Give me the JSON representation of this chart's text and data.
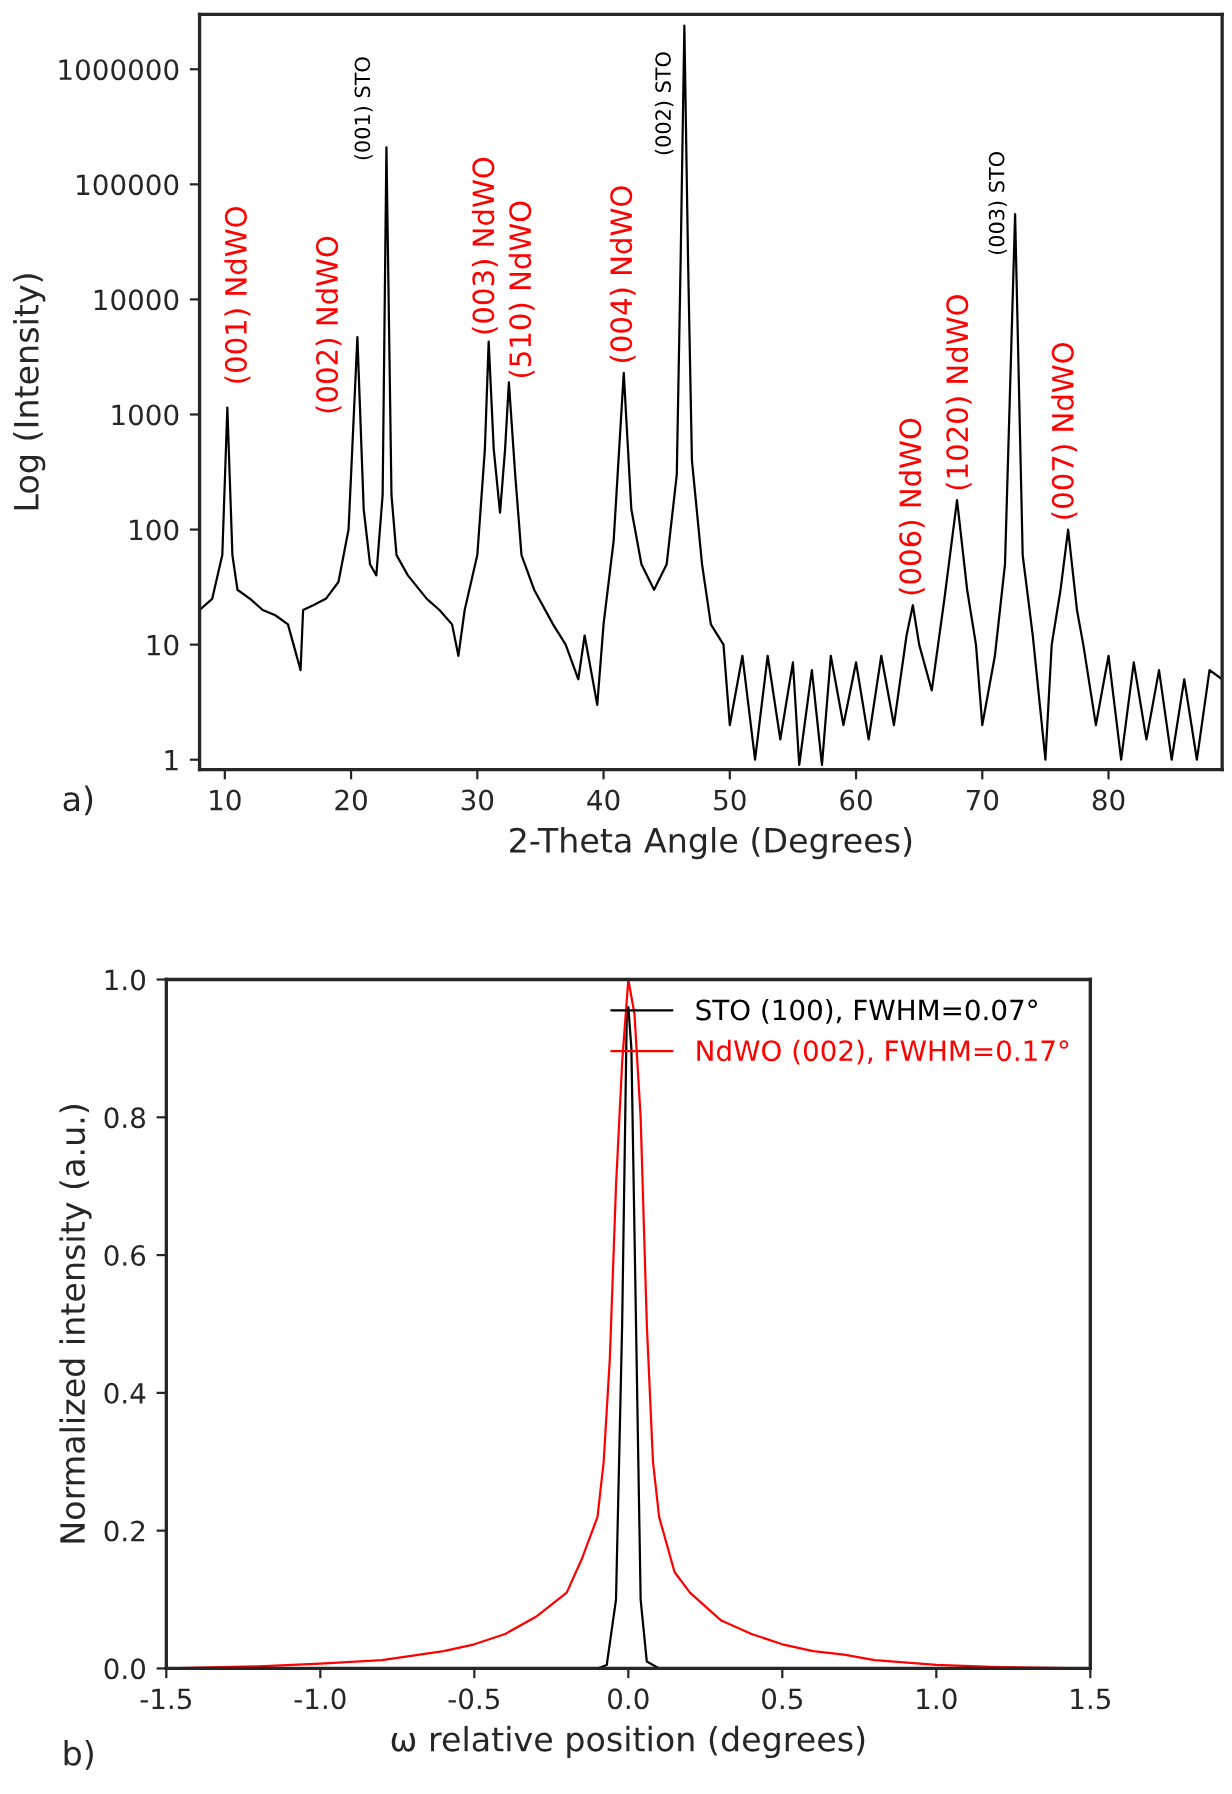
{
  "chart_data": [
    {
      "type": "line",
      "xlabel": "2-Theta Angle (Degrees)",
      "ylabel": "Log (Intensity)",
      "log": true,
      "grid": false,
      "legend": false,
      "xlim": [
        8,
        89
      ],
      "xticks": [
        10,
        20,
        30,
        40,
        50,
        60,
        70,
        80
      ],
      "ylim": [
        0.82,
        3000000
      ],
      "yticks": [
        1,
        10,
        100,
        1000,
        10000,
        100000,
        1000000
      ],
      "series": [
        {
          "color": "#000000",
          "x": [
            8,
            9,
            9.8,
            10.2,
            10.6,
            11,
            12,
            13,
            14,
            15,
            16,
            16.2,
            17,
            18,
            19,
            19.8,
            20.5,
            21,
            21.5,
            22,
            22.5,
            22.8,
            23.2,
            23.6,
            24.5,
            26,
            27,
            28,
            28.5,
            29,
            30,
            30.6,
            30.9,
            31.3,
            31.8,
            32.2,
            32.5,
            33,
            33.5,
            34.5,
            36,
            37,
            38,
            38.5,
            39.5,
            40,
            40.8,
            41.6,
            42.2,
            43,
            44,
            45,
            45.8,
            46.1,
            46.4,
            46.7,
            47,
            47.8,
            48.5,
            49.5,
            50,
            51,
            52,
            53,
            54,
            55,
            55.5,
            56.5,
            57.3,
            58,
            59,
            60,
            61,
            62,
            63,
            64,
            64.5,
            65,
            66,
            67,
            68,
            68.8,
            69.5,
            70,
            71,
            71.8,
            72.6,
            73.2,
            74,
            75,
            75.5,
            76.2,
            76.8,
            77.5,
            78,
            79,
            80,
            81,
            82,
            83,
            84,
            85,
            86,
            87,
            88,
            89
          ],
          "values": [
            20,
            25,
            60,
            1150,
            60,
            30,
            25,
            20,
            18,
            15,
            6,
            20,
            22,
            25,
            35,
            100,
            4700,
            150,
            50,
            40,
            200,
            210000,
            200,
            60,
            40,
            25,
            20,
            15,
            8,
            20,
            60,
            500,
            4300,
            500,
            140,
            500,
            1900,
            300,
            60,
            30,
            15,
            10,
            5,
            12,
            3,
            15,
            80,
            2300,
            150,
            50,
            30,
            50,
            300,
            20000,
            2400000,
            20000,
            400,
            50,
            15,
            10,
            2,
            8,
            1,
            8,
            1.5,
            7,
            0.9,
            6,
            0.9,
            8,
            2,
            7,
            1.5,
            8,
            2,
            12,
            22,
            10,
            4,
            25,
            180,
            30,
            10,
            2,
            8,
            50,
            55000,
            60,
            12,
            1,
            10,
            30,
            100,
            20,
            10,
            2,
            8,
            1,
            7,
            1.5,
            6,
            1,
            5,
            1,
            6,
            5
          ]
        }
      ],
      "annotations": [
        {
          "text": "(001) NdWO",
          "x": 10.2,
          "y": 1150
        },
        {
          "text": "(002) NdWO",
          "x": 20.5,
          "y": 4700
        },
        {
          "text": "(001) STO",
          "x": 22.8,
          "y": 210000
        },
        {
          "text": "(003) NdWO",
          "x": 30.9,
          "y": 4300
        },
        {
          "text": "(510) NdWO",
          "x": 32.5,
          "y": 1900
        },
        {
          "text": "(004) NdWO",
          "x": 41.6,
          "y": 2300
        },
        {
          "text": "(002) STO",
          "x": 46.4,
          "y": 2400000
        },
        {
          "text": "(006) NdWO",
          "x": 64.5,
          "y": 22
        },
        {
          "text": "(1020) NdWO",
          "x": 68,
          "y": 180
        },
        {
          "text": "(003) STO",
          "x": 72.6,
          "y": 55000
        },
        {
          "text": "(007) NdWO",
          "x": 76.8,
          "y": 100
        },
        "a)"
      ]
    },
    {
      "type": "line",
      "xlabel": "ω relative position (degrees)",
      "ylabel": "Normalized intensity (a.u.)",
      "grid": false,
      "legend": "top right",
      "xlim": [
        -1.5,
        1.5
      ],
      "xticks": [
        {
          "value": -1.5,
          "label": "-1.5"
        },
        {
          "value": -1.0,
          "label": "-1.0"
        },
        {
          "value": -0.5,
          "label": "-0.5"
        },
        {
          "value": 0.0,
          "label": "0.0"
        },
        {
          "value": 0.5,
          "label": "0.5"
        },
        {
          "value": 1.0,
          "label": "1.0"
        },
        {
          "value": 1.5,
          "label": "1.5"
        }
      ],
      "ylim": [
        0,
        1
      ],
      "yticks": [
        {
          "value": 0,
          "label": "0.0"
        },
        {
          "value": 0.2,
          "label": "0.2"
        },
        {
          "value": 0.4,
          "label": "0.4"
        },
        {
          "value": 0.6,
          "label": "0.6"
        },
        {
          "value": 0.8,
          "label": "0.8"
        },
        {
          "value": 1,
          "label": "1.0"
        }
      ],
      "series": [
        {
          "name": "STO (100), FWHM=0.07°",
          "color": "#000000",
          "x": [
            -1.5,
            -0.1,
            -0.07,
            -0.04,
            -0.02,
            -0.005,
            0.0,
            0.01,
            0.025,
            0.04,
            0.06,
            0.1,
            1.5
          ],
          "values": [
            0,
            0,
            0.005,
            0.1,
            0.5,
            0.95,
            0.96,
            0.9,
            0.5,
            0.1,
            0.01,
            0,
            0
          ]
        },
        {
          "name": "NdWO (002), FWHM=0.17°",
          "color": "#ff0000",
          "x": [
            -1.5,
            -1.2,
            -1.0,
            -0.8,
            -0.6,
            -0.5,
            -0.4,
            -0.3,
            -0.2,
            -0.15,
            -0.1,
            -0.08,
            -0.06,
            -0.04,
            -0.02,
            0,
            0.02,
            0.04,
            0.06,
            0.08,
            0.1,
            0.15,
            0.2,
            0.3,
            0.4,
            0.5,
            0.6,
            0.7,
            0.8,
            1.0,
            1.2,
            1.5
          ],
          "values": [
            0,
            0.003,
            0.007,
            0.012,
            0.025,
            0.035,
            0.05,
            0.075,
            0.11,
            0.16,
            0.22,
            0.3,
            0.45,
            0.7,
            0.88,
            1.0,
            0.95,
            0.8,
            0.5,
            0.3,
            0.22,
            0.14,
            0.11,
            0.07,
            0.05,
            0.035,
            0.025,
            0.02,
            0.012,
            0.005,
            0.002,
            0
          ]
        }
      ],
      "annotations": [
        "b)"
      ]
    }
  ]
}
